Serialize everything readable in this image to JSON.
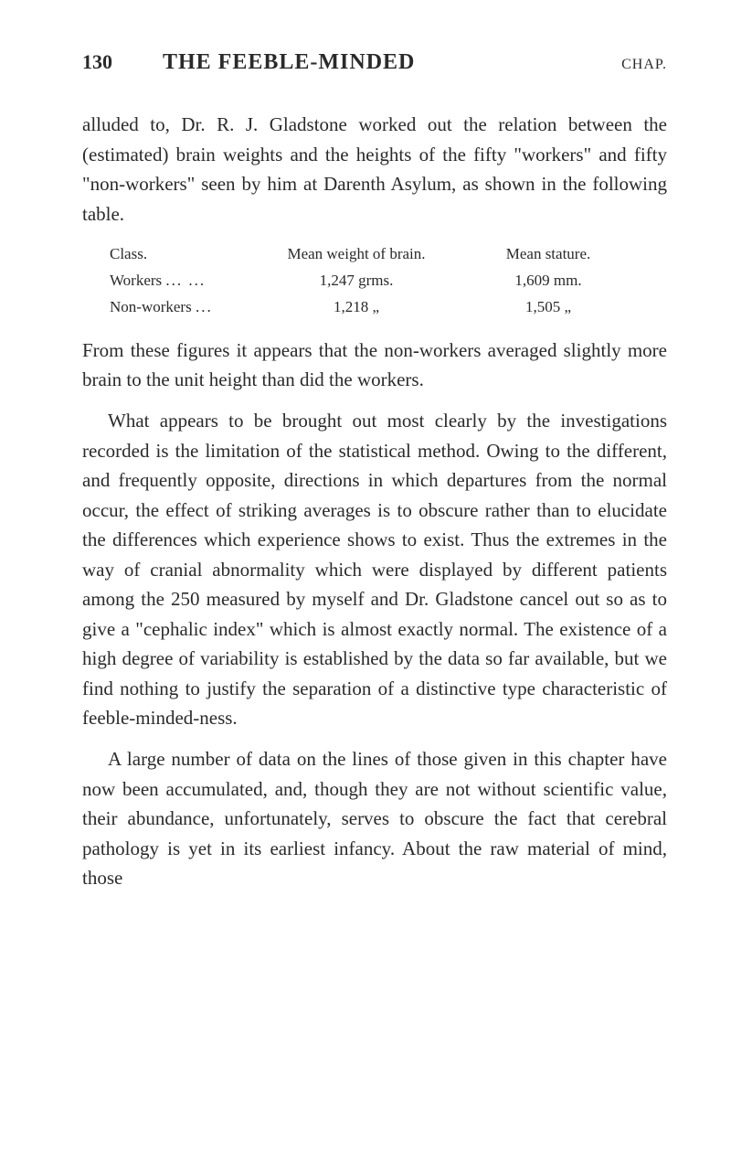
{
  "header": {
    "page_number": "130",
    "title": "THE FEEBLE-MINDED",
    "chapter_label": "CHAP."
  },
  "paragraph1": "alluded to, Dr. R. J. Gladstone worked out the relation between the (estimated) brain weights and the heights of the fifty \"workers\" and fifty \"non-workers\" seen by him at Darenth Asylum, as shown in the following table.",
  "table": {
    "headers": {
      "col1": "Class.",
      "col2": "Mean weight of brain.",
      "col3": "Mean stature."
    },
    "row1": {
      "col1": "Workers",
      "col1_dots": "...   ...",
      "col2": "1,247 grms.",
      "col3": "1,609 mm."
    },
    "row2": {
      "col1": "Non-workers",
      "col1_dots": "...",
      "col2": "1,218   „",
      "col3": "1,505  „"
    }
  },
  "paragraph2": "From these figures it appears that the non-workers averaged slightly more brain to the unit height than did the workers.",
  "paragraph3": "What appears to be brought out most clearly by the investigations recorded is the limitation of the statistical method. Owing to the different, and frequently opposite, directions in which departures from the normal occur, the effect of striking averages is to obscure rather than to elucidate the differences which experience shows to exist. Thus the extremes in the way of cranial abnormality which were displayed by different patients among the 250 measured by myself and Dr. Gladstone cancel out so as to give a \"cephalic index\" which is almost exactly normal. The existence of a high degree of variability is established by the data so far available, but we find nothing to justify the separation of a distinctive type characteristic of feeble-minded-ness.",
  "paragraph4": "A large number of data on the lines of those given in this chapter have now been accumulated, and, though they are not without scientific value, their abundance, unfortunately, serves to obscure the fact that cerebral pathology is yet in its earliest infancy. About the raw material of mind, those"
}
